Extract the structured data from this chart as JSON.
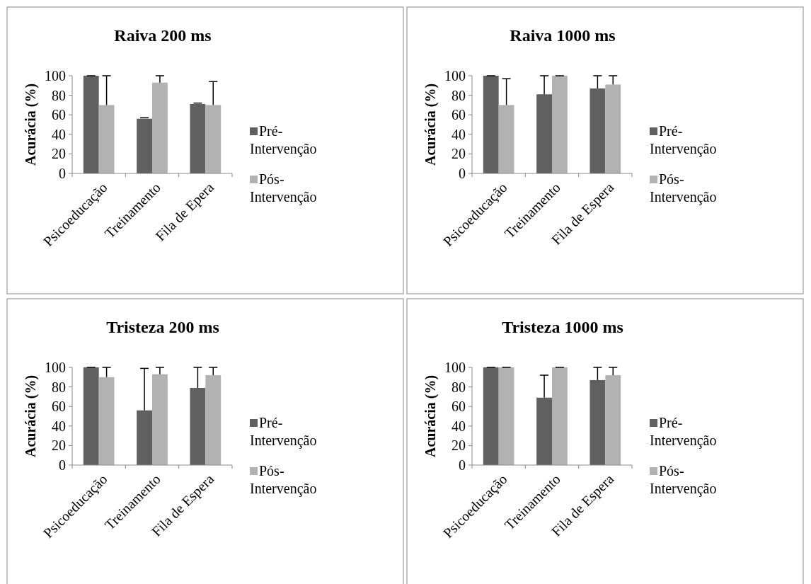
{
  "chart_data": [
    {
      "type": "bar",
      "title": "Raiva 200 ms",
      "ylabel": "Acurácia (%)",
      "categories": [
        "Psicoeducação",
        "Treinamento",
        "Fila de Epera"
      ],
      "ylim": [
        0,
        100
      ],
      "yticks": [
        0,
        20,
        40,
        60,
        80,
        100
      ],
      "grid": false,
      "legend": "right",
      "series": [
        {
          "name": "Pré-Intervenção",
          "color": "#606060",
          "values": [
            100,
            56,
            71
          ],
          "errors": [
            [
              100,
              100
            ],
            [
              56,
              57
            ],
            [
              71,
              72
            ]
          ]
        },
        {
          "name": "Pós-Intervenção",
          "color": "#b2b2b2",
          "values": [
            70,
            93,
            70
          ],
          "errors": [
            [
              70,
              100
            ],
            [
              93,
              100
            ],
            [
              70,
              94
            ]
          ]
        }
      ]
    },
    {
      "type": "bar",
      "title": "Raiva 1000 ms",
      "ylabel": "Acurácia (%)",
      "categories": [
        "Psicoeducação",
        "Treinamento",
        "Fila de Espera"
      ],
      "ylim": [
        0,
        100
      ],
      "yticks": [
        0,
        20,
        40,
        60,
        80,
        100
      ],
      "grid": false,
      "legend": "right",
      "series": [
        {
          "name": "Pré-Intervenção",
          "color": "#606060",
          "values": [
            100,
            81,
            87
          ],
          "errors": [
            [
              100,
              100
            ],
            [
              81,
              100
            ],
            [
              87,
              100
            ]
          ]
        },
        {
          "name": "Pós-Intervenção",
          "color": "#b2b2b2",
          "values": [
            70,
            100,
            91
          ],
          "errors": [
            [
              70,
              97
            ],
            [
              100,
              100
            ],
            [
              91,
              100
            ]
          ]
        }
      ]
    },
    {
      "type": "bar",
      "title": "Tristeza 200 ms",
      "ylabel": "Acurácia (%)",
      "categories": [
        "Psicoeducação",
        "Treinamento",
        "Fila de Espera"
      ],
      "ylim": [
        0,
        100
      ],
      "yticks": [
        0,
        20,
        40,
        60,
        80,
        100
      ],
      "grid": false,
      "legend": "right",
      "series": [
        {
          "name": "Pré-Intervenção",
          "color": "#606060",
          "values": [
            100,
            56,
            79
          ],
          "errors": [
            [
              100,
              100
            ],
            [
              56,
              99
            ],
            [
              79,
              100
            ]
          ]
        },
        {
          "name": "Pós-Intervenção",
          "color": "#b2b2b2",
          "values": [
            90,
            93,
            92
          ],
          "errors": [
            [
              90,
              100
            ],
            [
              93,
              100
            ],
            [
              92,
              100
            ]
          ]
        }
      ]
    },
    {
      "type": "bar",
      "title": "Tristeza 1000 ms",
      "ylabel": "Acurácia (%)",
      "categories": [
        "Psicoeducação",
        "Treinamento",
        "Fila de Espera"
      ],
      "ylim": [
        0,
        100
      ],
      "yticks": [
        0,
        20,
        40,
        60,
        80,
        100
      ],
      "grid": false,
      "legend": "right",
      "series": [
        {
          "name": "Pré-Intervenção",
          "color": "#606060",
          "values": [
            100,
            69,
            87
          ],
          "errors": [
            [
              100,
              100
            ],
            [
              69,
              92
            ],
            [
              87,
              100
            ]
          ]
        },
        {
          "name": "Pós-Intervenção",
          "color": "#b2b2b2",
          "values": [
            100,
            100,
            92
          ],
          "errors": [
            [
              100,
              100
            ],
            [
              100,
              100
            ],
            [
              92,
              100
            ]
          ]
        }
      ]
    }
  ]
}
